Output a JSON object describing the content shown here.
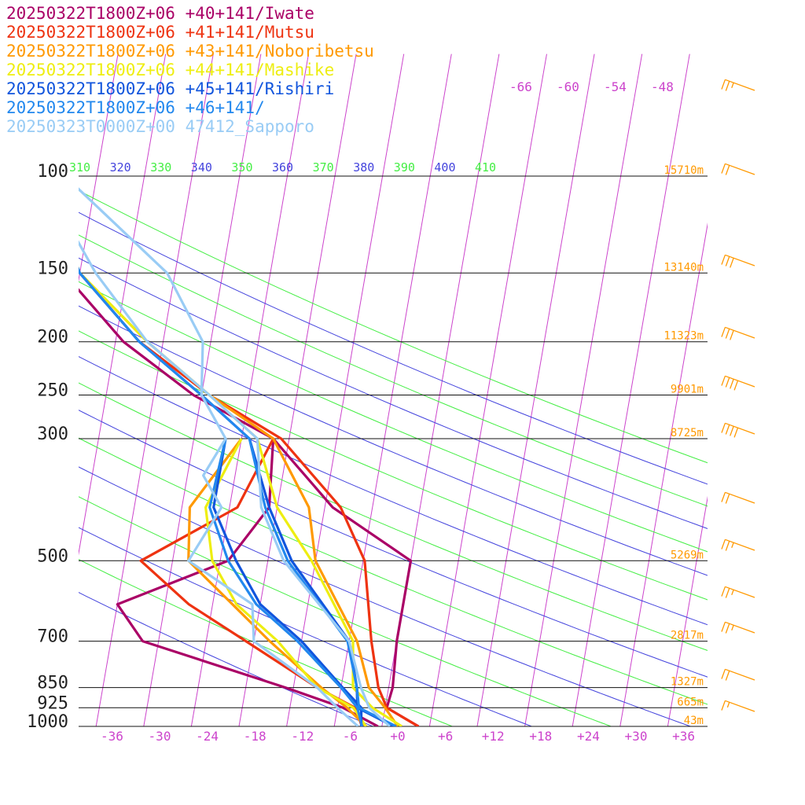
{
  "chart_data": {
    "type": "line",
    "title": "",
    "xlabel": "",
    "ylabel": "",
    "x_axis": {
      "ticks": [
        "-36",
        "-30",
        "-24",
        "-18",
        "-12",
        "-6",
        "+0",
        "+6",
        "+12",
        "+18",
        "+24",
        "+30",
        "+36"
      ],
      "range": [
        -40,
        40
      ]
    },
    "y_axis": {
      "scale": "log",
      "range": [
        1000,
        100
      ],
      "ticks": [
        {
          "p": 100,
          "label": "100",
          "height": "15710m"
        },
        {
          "p": 150,
          "label": "150",
          "height": "13140m"
        },
        {
          "p": 200,
          "label": "200",
          "height": "11323m"
        },
        {
          "p": 250,
          "label": "250",
          "height": "9901m"
        },
        {
          "p": 300,
          "label": "300",
          "height": "8725m"
        },
        {
          "p": 500,
          "label": "500",
          "height": "5269m"
        },
        {
          "p": 700,
          "label": "700",
          "height": "2817m"
        },
        {
          "p": 850,
          "label": "850",
          "height": "1327m"
        },
        {
          "p": 925,
          "label": "925",
          "height": "665m"
        },
        {
          "p": 1000,
          "label": "1000",
          "height": "43m"
        }
      ]
    },
    "theta_labels": [
      "310",
      "320",
      "330",
      "340",
      "350",
      "360",
      "370",
      "380",
      "390",
      "400",
      "410"
    ],
    "upper_temp_labels": [
      "-66",
      "-60",
      "-54",
      "-48"
    ],
    "series": [
      {
        "name": "20250322T1800Z+06 +40+141/Iwate",
        "color": "#aa0066",
        "temp": [
          [
            1000,
            2.6
          ],
          [
            925,
            -1.8
          ],
          [
            850,
            -1.5
          ],
          [
            700,
            -2.0
          ],
          [
            500,
            -2.0
          ],
          [
            400,
            -13
          ],
          [
            300,
            -22
          ],
          [
            250,
            -33
          ],
          [
            200,
            -43
          ],
          [
            150,
            -52
          ],
          [
            100,
            -58
          ]
        ],
        "dew": [
          [
            1000,
            -2.5
          ],
          [
            925,
            -7.3
          ],
          [
            850,
            -15
          ],
          [
            700,
            -34
          ],
          [
            600,
            -38
          ],
          [
            500,
            -25
          ],
          [
            400,
            -21
          ],
          [
            300,
            -22
          ]
        ]
      },
      {
        "name": "20250322T1800Z+06 +41+141/Mutsu",
        "color": "#ee3311",
        "temp": [
          [
            1000,
            2.6
          ],
          [
            925,
            -1.8
          ],
          [
            850,
            -3.3
          ],
          [
            700,
            -5.2
          ],
          [
            500,
            -7.8
          ],
          [
            400,
            -12.0
          ],
          [
            300,
            -21
          ],
          [
            250,
            -31
          ],
          [
            200,
            -41
          ],
          [
            150,
            -50
          ],
          [
            100,
            -57
          ]
        ],
        "dew": [
          [
            1000,
            -4.5
          ],
          [
            925,
            -5.8
          ],
          [
            850,
            -11
          ],
          [
            700,
            -21
          ],
          [
            600,
            -29
          ],
          [
            500,
            -36
          ],
          [
            400,
            -25
          ],
          [
            300,
            -22
          ]
        ]
      },
      {
        "name": "20250322T1800Z+06 +43+141/Noboribetsu",
        "color": "#ff9900",
        "temp": [
          [
            1000,
            0.0
          ],
          [
            925,
            -2.0
          ],
          [
            850,
            -4.5
          ],
          [
            700,
            -7.0
          ],
          [
            500,
            -14.0
          ],
          [
            400,
            -16.0
          ],
          [
            300,
            -22
          ],
          [
            250,
            -31
          ],
          [
            200,
            -40
          ],
          [
            150,
            -50
          ],
          [
            100,
            -57
          ]
        ],
        "dew": [
          [
            1000,
            -4.0
          ],
          [
            925,
            -6.8
          ],
          [
            850,
            -10.5
          ],
          [
            700,
            -18
          ],
          [
            500,
            -30
          ],
          [
            400,
            -31
          ],
          [
            300,
            -26
          ]
        ]
      },
      {
        "name": "20250322T1800Z+06 +44+141/Mashike",
        "color": "#eeee11",
        "temp": [
          [
            1000,
            0.5
          ],
          [
            925,
            -3.6
          ],
          [
            850,
            -6.5
          ],
          [
            700,
            -7.5
          ],
          [
            500,
            -14.5
          ],
          [
            400,
            -20.0
          ],
          [
            300,
            -24
          ],
          [
            250,
            -31
          ],
          [
            200,
            -40
          ],
          [
            150,
            -50
          ],
          [
            100,
            -57
          ]
        ],
        "dew": [
          [
            1000,
            -4.0
          ],
          [
            925,
            -6.0
          ],
          [
            850,
            -11
          ],
          [
            700,
            -17
          ],
          [
            600,
            -23
          ],
          [
            500,
            -27
          ],
          [
            400,
            -29
          ],
          [
            300,
            -26
          ]
        ]
      },
      {
        "name": "20250322T1800Z+06 +45+141/Rishiri",
        "color": "#1155dd",
        "temp": [
          [
            1000,
            -0.5
          ],
          [
            925,
            -5.5
          ],
          [
            850,
            -6.0
          ],
          [
            700,
            -8.0
          ],
          [
            500,
            -17.0
          ],
          [
            400,
            -21.0
          ],
          [
            300,
            -25
          ],
          [
            250,
            -32
          ],
          [
            200,
            -41
          ],
          [
            150,
            -50
          ],
          [
            100,
            -57
          ]
        ],
        "dew": [
          [
            1000,
            -4.6
          ],
          [
            925,
            -5.0
          ],
          [
            850,
            -7.8
          ],
          [
            700,
            -14
          ],
          [
            600,
            -20
          ],
          [
            500,
            -24
          ],
          [
            400,
            -28
          ],
          [
            300,
            -28
          ]
        ]
      },
      {
        "name": "20250322T1800Z+06 +46+141/",
        "color": "#2288ee",
        "temp": [
          [
            1000,
            -0.2
          ],
          [
            925,
            -5.3
          ],
          [
            850,
            -6.0
          ],
          [
            700,
            -8.2
          ],
          [
            500,
            -17.5
          ],
          [
            400,
            -21.5
          ],
          [
            300,
            -25
          ],
          [
            250,
            -32
          ],
          [
            200,
            -41
          ],
          [
            150,
            -50
          ],
          [
            100,
            -57
          ]
        ],
        "dew": [
          [
            1000,
            -4.5
          ],
          [
            925,
            -5.5
          ],
          [
            850,
            -8.0
          ],
          [
            700,
            -14.5
          ],
          [
            600,
            -20.5
          ],
          [
            500,
            -25
          ],
          [
            400,
            -28.5
          ],
          [
            300,
            -28
          ]
        ]
      },
      {
        "name": "20250323T0000Z+00 47412_Sapporo",
        "color": "#99ccf5",
        "temp": [
          [
            1000,
            -1.0
          ],
          [
            925,
            -4.0
          ],
          [
            850,
            -5.5
          ],
          [
            700,
            -8.0
          ],
          [
            500,
            -18.0
          ],
          [
            400,
            -22.0
          ],
          [
            300,
            -24
          ],
          [
            250,
            -31
          ],
          [
            200,
            -40
          ],
          [
            150,
            -48
          ],
          [
            100,
            -57
          ]
        ],
        "dew": [
          [
            1000,
            -5.0
          ],
          [
            925,
            -8.0
          ],
          [
            850,
            -11
          ],
          [
            700,
            -20
          ],
          [
            600,
            -21
          ],
          [
            500,
            -30
          ],
          [
            400,
            -27
          ],
          [
            350,
            -30
          ],
          [
            300,
            -28
          ],
          [
            250,
            -32
          ],
          [
            200,
            -33
          ],
          [
            150,
            -39
          ],
          [
            100,
            -54
          ]
        ]
      }
    ]
  }
}
